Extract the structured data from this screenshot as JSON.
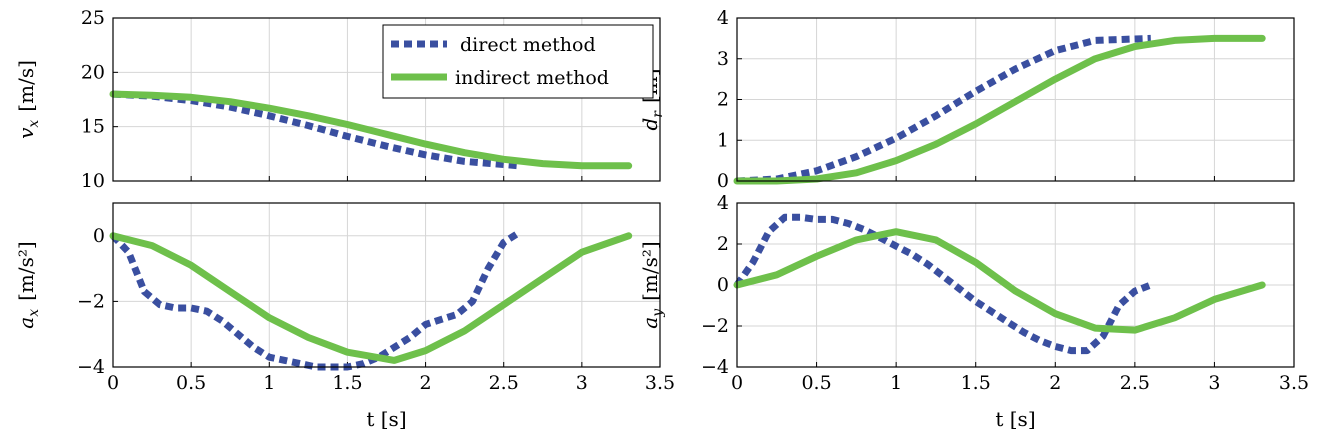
{
  "colors": {
    "direct": "#3a4fa0",
    "indirect": "#6ec04b"
  },
  "legend": {
    "direct": "direct method",
    "indirect": "indirect method"
  },
  "chart_data": [
    {
      "id": "vx",
      "type": "line",
      "ylabel_symbol": "v",
      "ylabel_sub": "x",
      "ylabel_unit": "[m/s]",
      "xlabel": "",
      "xlim": [
        0,
        3.5
      ],
      "ylim": [
        10,
        25
      ],
      "xticks": [
        "0",
        "0.5",
        "1",
        "1.5",
        "2",
        "2.5",
        "3",
        "3.5"
      ],
      "yticks": [
        "10",
        "15",
        "20",
        "25"
      ],
      "grid": true,
      "legend_position": "top-right",
      "series": [
        {
          "name": "direct method",
          "style": "dashed",
          "x": [
            0,
            0.25,
            0.5,
            0.75,
            1.0,
            1.25,
            1.5,
            1.75,
            2.0,
            2.25,
            2.6
          ],
          "y": [
            18.0,
            17.8,
            17.4,
            16.8,
            16.0,
            15.1,
            14.1,
            13.2,
            12.4,
            11.8,
            11.4
          ]
        },
        {
          "name": "indirect method",
          "style": "solid",
          "x": [
            0,
            0.25,
            0.5,
            0.75,
            1.0,
            1.25,
            1.5,
            1.75,
            2.0,
            2.25,
            2.5,
            2.75,
            3.0,
            3.3
          ],
          "y": [
            18.0,
            17.9,
            17.7,
            17.3,
            16.7,
            16.0,
            15.2,
            14.3,
            13.4,
            12.6,
            12.0,
            11.6,
            11.4,
            11.4
          ]
        }
      ]
    },
    {
      "id": "dr",
      "type": "line",
      "ylabel_symbol": "d",
      "ylabel_sub": "r",
      "ylabel_unit": "[m]",
      "xlabel": "",
      "xlim": [
        0,
        3.5
      ],
      "ylim": [
        0,
        4
      ],
      "xticks": [
        "0",
        "0.5",
        "1",
        "1.5",
        "2",
        "2.5",
        "3",
        "3.5"
      ],
      "yticks": [
        "0",
        "1",
        "2",
        "3",
        "4"
      ],
      "grid": true,
      "series": [
        {
          "name": "direct method",
          "style": "dashed",
          "x": [
            0,
            0.25,
            0.5,
            0.75,
            1.0,
            1.25,
            1.5,
            1.75,
            2.0,
            2.25,
            2.6
          ],
          "y": [
            0.0,
            0.05,
            0.25,
            0.6,
            1.05,
            1.6,
            2.2,
            2.75,
            3.2,
            3.45,
            3.5
          ]
        },
        {
          "name": "indirect method",
          "style": "solid",
          "x": [
            0,
            0.25,
            0.5,
            0.75,
            1.0,
            1.25,
            1.5,
            1.75,
            2.0,
            2.25,
            2.5,
            2.75,
            3.0,
            3.3
          ],
          "y": [
            0.0,
            0.0,
            0.05,
            0.2,
            0.5,
            0.9,
            1.4,
            1.95,
            2.5,
            3.0,
            3.3,
            3.45,
            3.5,
            3.5
          ]
        }
      ]
    },
    {
      "id": "ax",
      "type": "line",
      "ylabel_symbol": "a",
      "ylabel_sub": "x",
      "ylabel_unit": "[m/s²]",
      "xlabel": "t [s]",
      "xlim": [
        0,
        3.5
      ],
      "ylim": [
        -4,
        1
      ],
      "xticks": [
        "0",
        "0.5",
        "1",
        "1.5",
        "2",
        "2.5",
        "3",
        "3.5"
      ],
      "yticks": [
        "−4",
        "−2",
        "0"
      ],
      "ytick_values": [
        -4,
        -2,
        0
      ],
      "grid": true,
      "series": [
        {
          "name": "direct method",
          "style": "dashed",
          "x": [
            0,
            0.1,
            0.2,
            0.3,
            0.4,
            0.5,
            0.6,
            0.7,
            0.8,
            0.9,
            1.0,
            1.1,
            1.2,
            1.3,
            1.4,
            1.5,
            1.6,
            1.7,
            1.8,
            1.9,
            2.0,
            2.1,
            2.2,
            2.3,
            2.4,
            2.5,
            2.6
          ],
          "y": [
            0.0,
            -0.5,
            -1.7,
            -2.1,
            -2.2,
            -2.2,
            -2.3,
            -2.6,
            -3.0,
            -3.4,
            -3.7,
            -3.8,
            -3.9,
            -4.0,
            -4.0,
            -4.0,
            -3.9,
            -3.7,
            -3.4,
            -3.1,
            -2.7,
            -2.55,
            -2.4,
            -2.0,
            -1.0,
            -0.2,
            0.1
          ]
        },
        {
          "name": "indirect method",
          "style": "solid",
          "x": [
            0,
            0.25,
            0.5,
            0.75,
            1.0,
            1.25,
            1.5,
            1.8,
            2.0,
            2.25,
            2.5,
            2.75,
            3.0,
            3.3
          ],
          "y": [
            0.0,
            -0.3,
            -0.9,
            -1.7,
            -2.5,
            -3.1,
            -3.55,
            -3.8,
            -3.5,
            -2.9,
            -2.1,
            -1.3,
            -0.5,
            0.0
          ]
        }
      ]
    },
    {
      "id": "ay",
      "type": "line",
      "ylabel_symbol": "a",
      "ylabel_sub": "y",
      "ylabel_unit": "[m/s²]",
      "xlabel": "t [s]",
      "xlim": [
        0,
        3.5
      ],
      "ylim": [
        -4,
        4
      ],
      "xticks": [
        "0",
        "0.5",
        "1",
        "1.5",
        "2",
        "2.5",
        "3",
        "3.5"
      ],
      "yticks": [
        "−4",
        "−2",
        "0",
        "2",
        "4"
      ],
      "ytick_values": [
        -4,
        -2,
        0,
        2,
        4
      ],
      "grid": true,
      "series": [
        {
          "name": "direct method",
          "style": "dashed",
          "x": [
            0,
            0.1,
            0.2,
            0.3,
            0.4,
            0.5,
            0.6,
            0.7,
            0.8,
            0.9,
            1.0,
            1.1,
            1.2,
            1.3,
            1.4,
            1.5,
            1.6,
            1.7,
            1.8,
            1.9,
            2.0,
            2.1,
            2.2,
            2.3,
            2.4,
            2.5,
            2.6
          ],
          "y": [
            0.0,
            1.1,
            2.6,
            3.3,
            3.3,
            3.2,
            3.2,
            3.0,
            2.7,
            2.3,
            1.9,
            1.5,
            1.0,
            0.4,
            -0.2,
            -0.8,
            -1.3,
            -1.8,
            -2.3,
            -2.7,
            -3.0,
            -3.2,
            -3.2,
            -2.5,
            -1.0,
            -0.3,
            0.0
          ]
        },
        {
          "name": "indirect method",
          "style": "solid",
          "x": [
            0,
            0.25,
            0.5,
            0.75,
            1.0,
            1.25,
            1.5,
            1.75,
            2.0,
            2.25,
            2.5,
            2.75,
            3.0,
            3.3
          ],
          "y": [
            0.0,
            0.5,
            1.4,
            2.2,
            2.6,
            2.2,
            1.1,
            -0.3,
            -1.4,
            -2.1,
            -2.2,
            -1.6,
            -0.7,
            0.0
          ]
        }
      ]
    }
  ]
}
